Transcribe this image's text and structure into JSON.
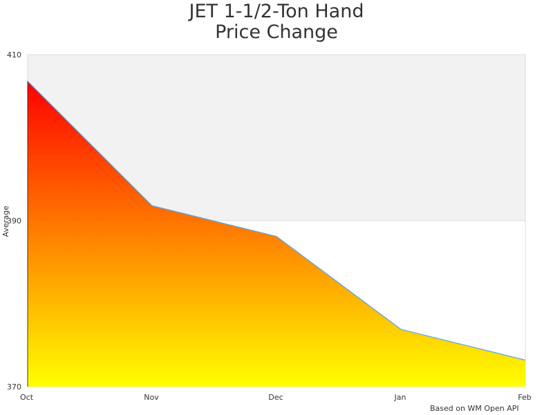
{
  "chart_data": {
    "type": "area",
    "title_lines": [
      "JET 1-1/2-Ton Hand",
      "Price Change"
    ],
    "xlabel": "",
    "ylabel": "Average",
    "categories": [
      "Oct",
      "Nov",
      "Dec",
      "Jan",
      "Feb"
    ],
    "series": [
      {
        "values": [
          406.8,
          391.8,
          388.1,
          376.9,
          373.2
        ]
      }
    ],
    "ylim": [
      370,
      410
    ],
    "yticks": [
      370,
      390,
      410
    ],
    "grid": "horizontal bands",
    "band_colors": [
      "#f2f2f2",
      "#ffffff"
    ],
    "fill_gradient": [
      "#ff0000",
      "#ffff00"
    ],
    "line_color": "#5aa7e8",
    "credit": "Based on WM Open API"
  }
}
